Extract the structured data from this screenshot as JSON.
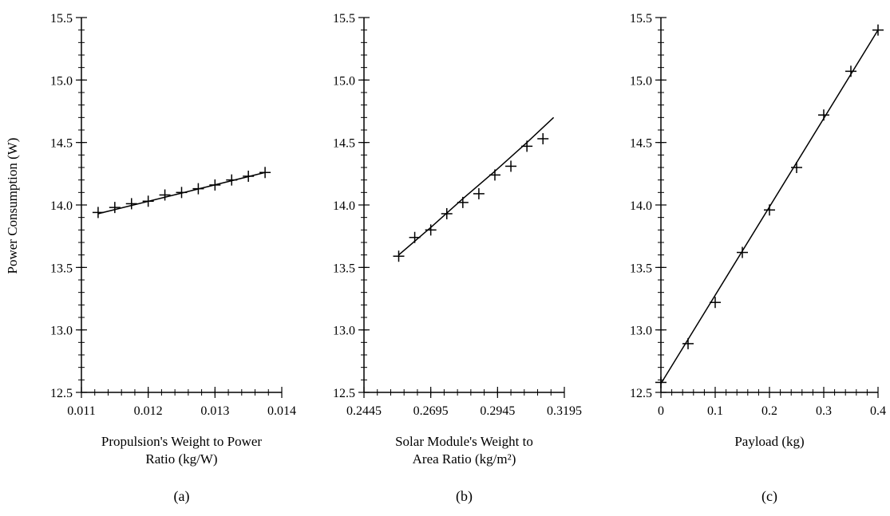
{
  "figure": {
    "ylabel": "Power Consumption (W)",
    "line_color": "#000000",
    "background": "#ffffff"
  },
  "chart_data": [
    {
      "type": "line",
      "panel_label": "(a)",
      "xlabel_lines": [
        "Propulsion's Weight to Power",
        "Ratio (kg/W)"
      ],
      "xlim": [
        0.011,
        0.014
      ],
      "ylim": [
        12.5,
        15.5
      ],
      "x_tick_labels": [
        "0.011",
        "0.012",
        "0.013",
        "0.014"
      ],
      "x_tick_values": [
        0.011,
        0.012,
        0.013,
        0.014
      ],
      "y_tick_labels": [
        "12.5",
        "13.0",
        "13.5",
        "14.0",
        "14.5",
        "15.0",
        "15.5"
      ],
      "y_tick_values": [
        12.5,
        13.0,
        13.5,
        14.0,
        14.5,
        15.0,
        15.5
      ],
      "marker": "plus",
      "series": [
        {
          "x": [
            0.01125,
            0.0115,
            0.01175,
            0.012,
            0.01225,
            0.0125,
            0.01275,
            0.013,
            0.01325,
            0.0135,
            0.01375
          ],
          "y": [
            13.94,
            13.98,
            14.01,
            14.03,
            14.08,
            14.1,
            14.13,
            14.16,
            14.2,
            14.23,
            14.26
          ]
        }
      ],
      "fit_line": {
        "x": [
          0.01125,
          0.01375
        ],
        "y": [
          13.93,
          14.26
        ]
      }
    },
    {
      "type": "line",
      "panel_label": "(b)",
      "xlabel_lines": [
        "Solar Module's Weight to",
        "Area Ratio (kg/m²)"
      ],
      "xlim": [
        0.2445,
        0.3195
      ],
      "ylim": [
        12.5,
        15.5
      ],
      "x_tick_labels": [
        "0.2445",
        "0.2695",
        "0.2945",
        "0.3195"
      ],
      "x_tick_values": [
        0.2445,
        0.2695,
        0.2945,
        0.3195
      ],
      "y_tick_labels": [
        "12.5",
        "13.0",
        "13.5",
        "14.0",
        "14.5",
        "15.0",
        "15.5"
      ],
      "y_tick_values": [
        12.5,
        13.0,
        13.5,
        14.0,
        14.5,
        15.0,
        15.5
      ],
      "marker": "plus",
      "series": [
        {
          "x": [
            0.2575,
            0.2635,
            0.2695,
            0.2755,
            0.2815,
            0.2875,
            0.2935,
            0.2995,
            0.3055,
            0.3115
          ],
          "y": [
            13.59,
            13.74,
            13.8,
            13.93,
            14.02,
            14.09,
            14.24,
            14.31,
            14.47,
            14.53
          ]
        }
      ],
      "fit_line": {
        "x": [
          0.2575,
          0.2695,
          0.2815,
          0.2935,
          0.3055,
          0.3155
        ],
        "y": [
          13.6,
          13.82,
          14.05,
          14.27,
          14.5,
          14.7
        ]
      }
    },
    {
      "type": "line",
      "panel_label": "(c)",
      "xlabel_lines": [
        "Payload (kg)"
      ],
      "xlim": [
        0,
        0.4
      ],
      "ylim": [
        12.5,
        15.5
      ],
      "x_tick_labels": [
        "0",
        "0.1",
        "0.2",
        "0.3",
        "0.4"
      ],
      "x_tick_values": [
        0,
        0.1,
        0.2,
        0.3,
        0.4
      ],
      "y_tick_labels": [
        "12.5",
        "13.0",
        "13.5",
        "14.0",
        "14.5",
        "15.0",
        "15.5"
      ],
      "y_tick_values": [
        12.5,
        13.0,
        13.5,
        14.0,
        14.5,
        15.0,
        15.5
      ],
      "marker": "plus",
      "series": [
        {
          "x": [
            0,
            0.05,
            0.1,
            0.15,
            0.2,
            0.25,
            0.3,
            0.35,
            0.4
          ],
          "y": [
            12.58,
            12.89,
            13.22,
            13.62,
            13.96,
            14.3,
            14.72,
            15.07,
            15.4
          ]
        }
      ],
      "fit_line": {
        "x": [
          0,
          0.4
        ],
        "y": [
          12.57,
          15.4
        ]
      }
    }
  ]
}
